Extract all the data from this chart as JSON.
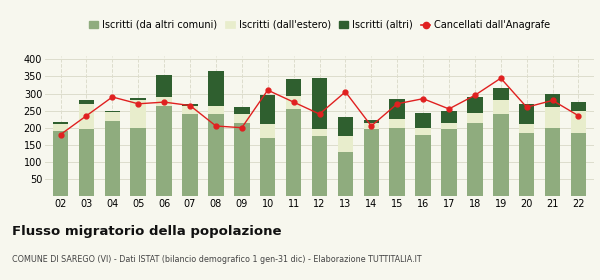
{
  "years": [
    "02",
    "03",
    "04",
    "05",
    "06",
    "07",
    "08",
    "09",
    "10",
    "11",
    "12",
    "13",
    "14",
    "15",
    "16",
    "17",
    "18",
    "19",
    "20",
    "21",
    "22"
  ],
  "iscritti_comuni": [
    190,
    195,
    220,
    200,
    265,
    240,
    240,
    215,
    170,
    255,
    175,
    130,
    195,
    200,
    180,
    195,
    215,
    240,
    185,
    200,
    185
  ],
  "iscritti_estero": [
    20,
    75,
    25,
    80,
    25,
    25,
    25,
    25,
    40,
    38,
    20,
    45,
    20,
    25,
    18,
    20,
    28,
    40,
    25,
    60,
    65
  ],
  "iscritti_altri": [
    8,
    10,
    5,
    8,
    65,
    5,
    100,
    20,
    85,
    50,
    150,
    55,
    8,
    60,
    45,
    35,
    48,
    35,
    60,
    40,
    25
  ],
  "cancellati": [
    180,
    235,
    290,
    270,
    275,
    265,
    205,
    200,
    310,
    275,
    240,
    305,
    205,
    270,
    285,
    255,
    295,
    345,
    260,
    280,
    235
  ],
  "color_comuni": "#8fac7e",
  "color_estero": "#e8edcc",
  "color_altri": "#2f5f2f",
  "color_cancellati": "#e02020",
  "ylim": [
    0,
    410
  ],
  "yticks": [
    0,
    50,
    100,
    150,
    200,
    250,
    300,
    350,
    400
  ],
  "legend_labels": [
    "Iscritti (da altri comuni)",
    "Iscritti (dall'estero)",
    "Iscritti (altri)",
    "Cancellati dall'Anagrafe"
  ],
  "title": "Flusso migratorio della popolazione",
  "subtitle": "COMUNE DI SAREGO (VI) - Dati ISTAT (bilancio demografico 1 gen-31 dic) - Elaborazione TUTTITALIA.IT",
  "bg_color": "#f7f7ee",
  "plot_bg": "#f7f7ee",
  "grid_color": "#ddddcc"
}
